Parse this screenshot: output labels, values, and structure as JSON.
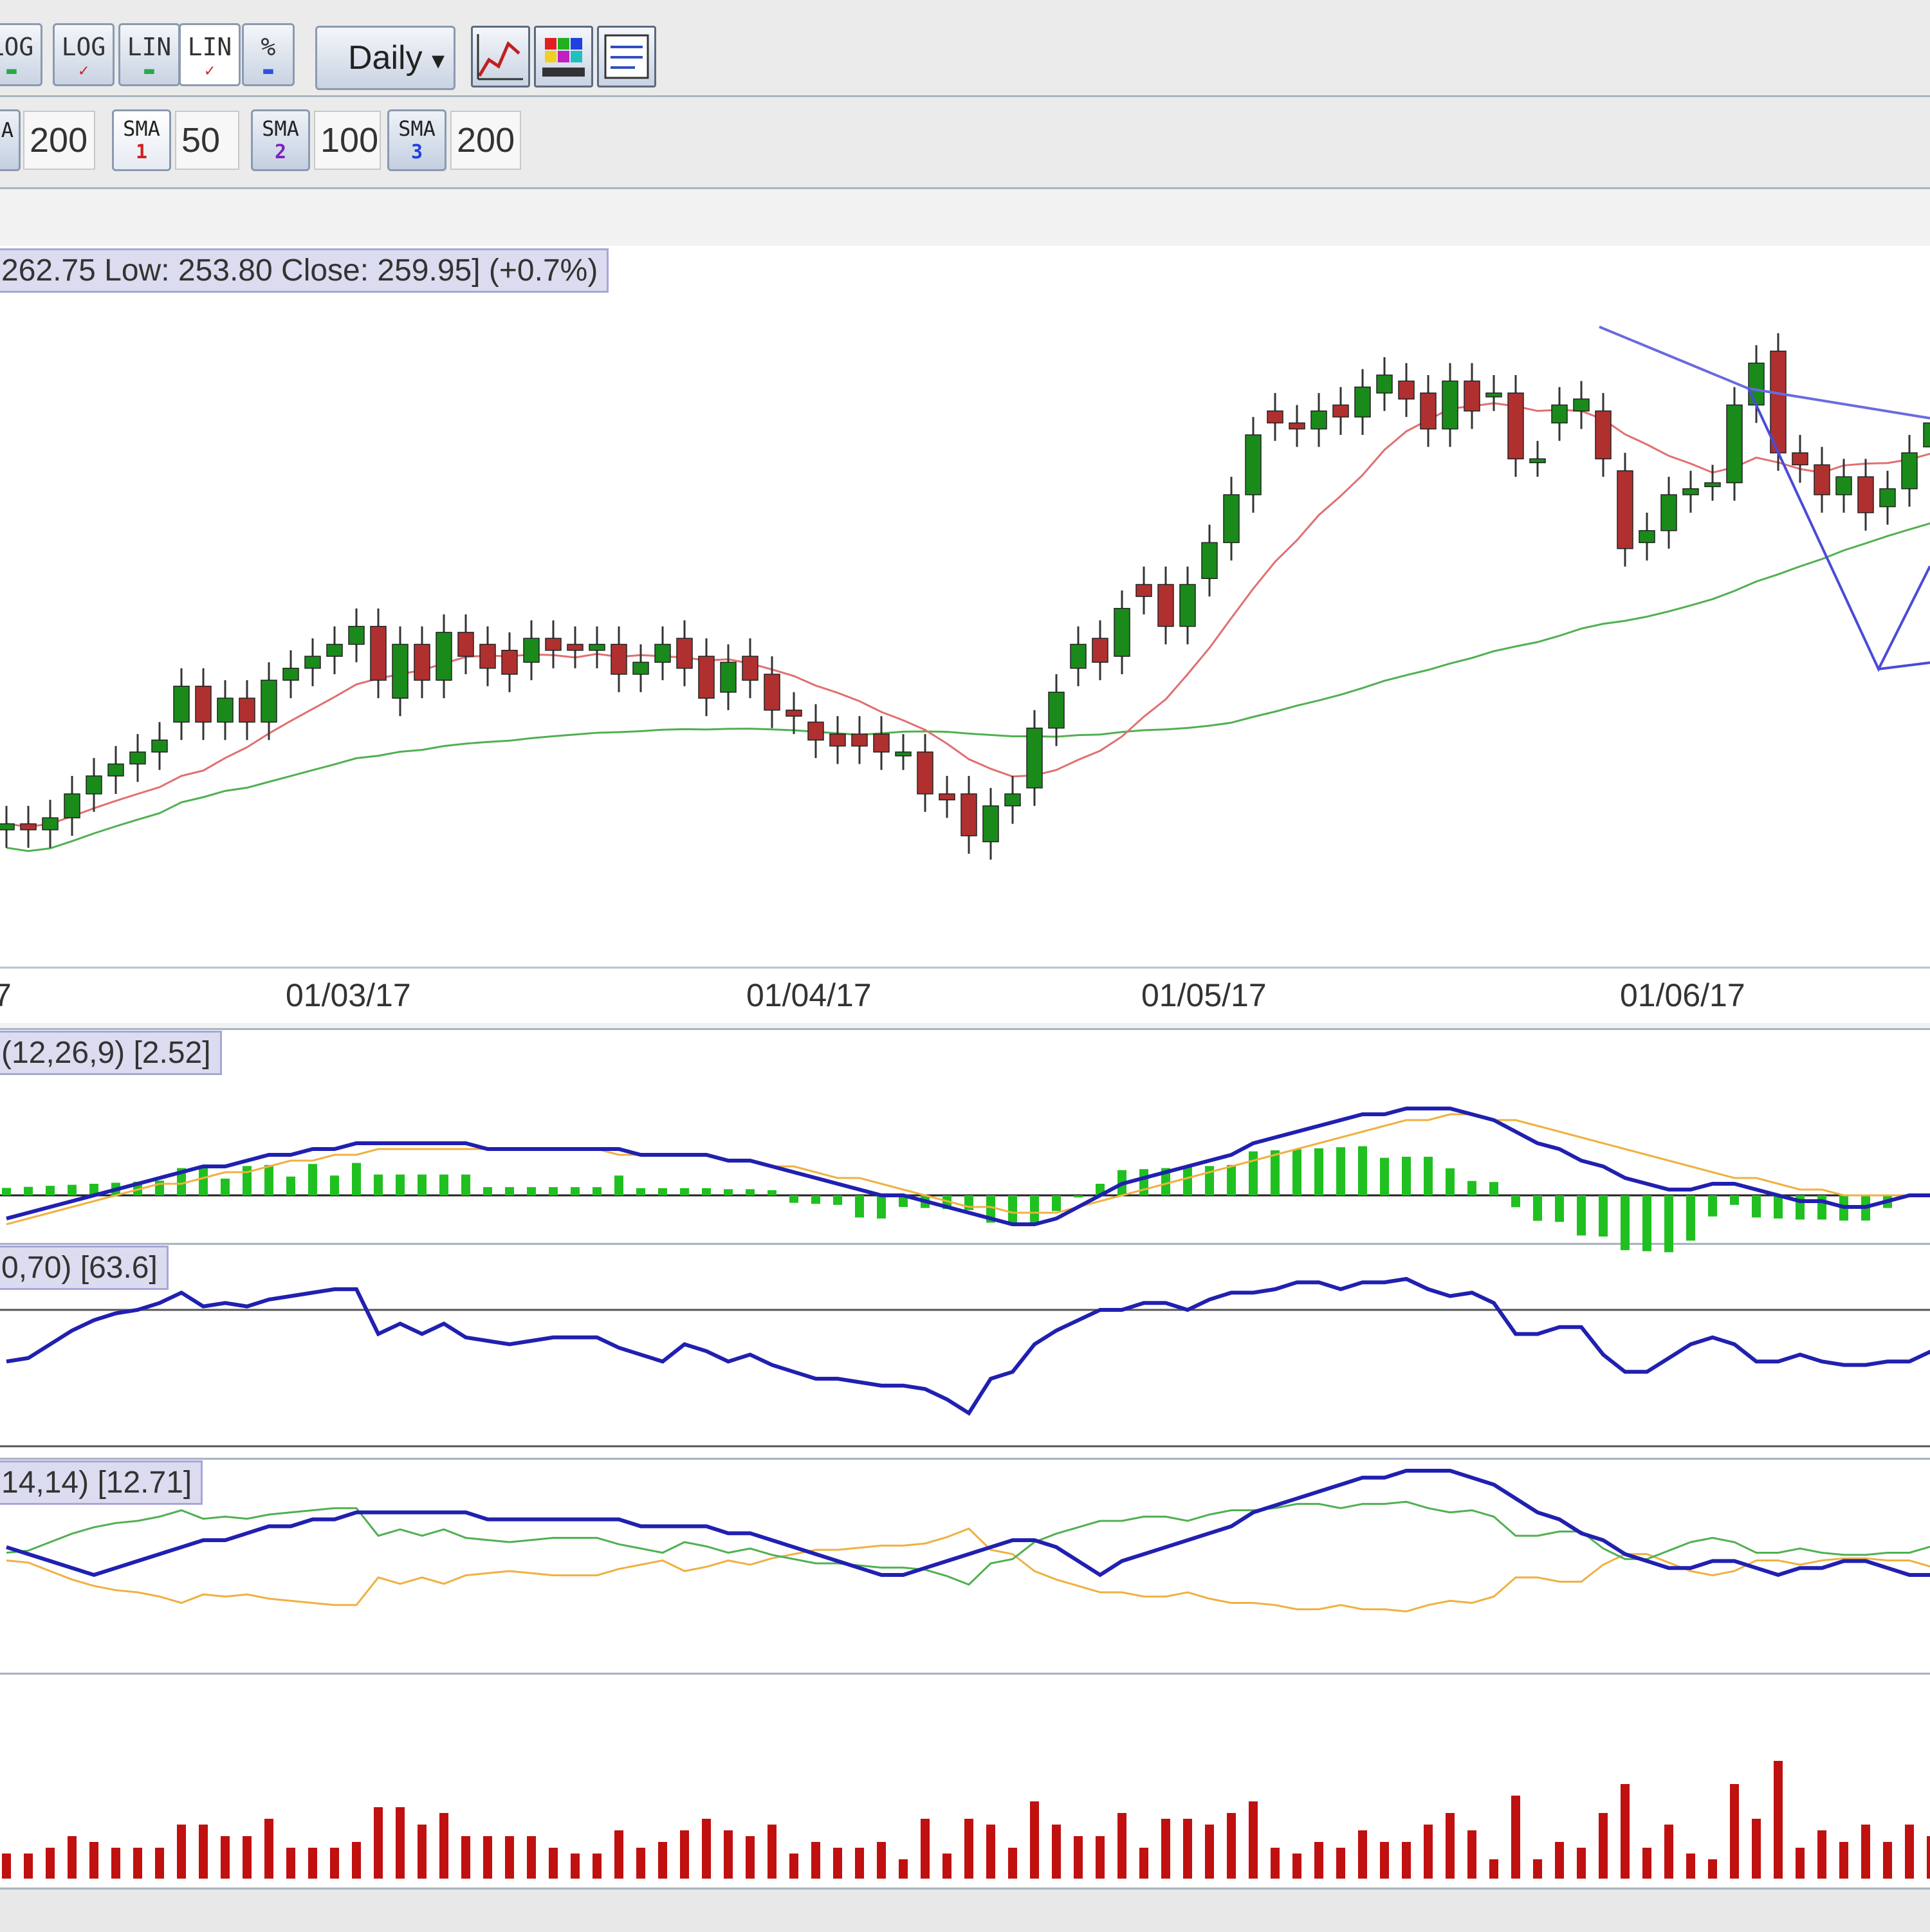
{
  "toolbar": {
    "scale_buttons": [
      {
        "label": "LOG",
        "mark": "▬",
        "color": "#2aa84a"
      },
      {
        "label": "LOG",
        "mark": "✓",
        "color": "#d02020"
      },
      {
        "label": "LIN",
        "mark": "▬",
        "color": "#2aa84a"
      },
      {
        "label": "LIN",
        "mark": "✓",
        "color": "#d02020"
      },
      {
        "label": "%",
        "mark": "▬",
        "color": "#3050e0"
      }
    ],
    "period_label": "Daily",
    "period_arrow": "▾",
    "tool_icons": [
      "chart-type-icon",
      "color-palette-icon",
      "chart-settings-icon"
    ]
  },
  "ma_bar": {
    "partial_value": "200",
    "partial_label": "A",
    "sma": [
      {
        "label": "SMA",
        "num": "1",
        "num_color": "#d02020",
        "value": "50"
      },
      {
        "label": "SMA",
        "num": "2",
        "num_color": "#8020c0",
        "value": "100"
      },
      {
        "label": "SMA",
        "num": "3",
        "num_color": "#2040e0",
        "value": "200"
      }
    ]
  },
  "price_panel": {
    "info": "262.75  Low: 253.80  Close: 259.95] (+0.7%)"
  },
  "dates": [
    "7",
    "01/03/17",
    "01/04/17",
    "01/05/17",
    "01/06/17"
  ],
  "macd_panel": {
    "label": "(12,26,9) [2.52]"
  },
  "rsi_panel": {
    "label": "0,70) [63.6]"
  },
  "adx_panel": {
    "label": "14,14) [12.71]"
  },
  "colors": {
    "up": "#1a8a1a",
    "down": "#b03030",
    "sma_red": "#e07070",
    "sma_green": "#50b050",
    "blue": "#2020b0",
    "orange": "#f0b040",
    "volume": "#c01010"
  },
  "chart_data": {
    "type": "candlestick",
    "candles": [
      {
        "o": 214,
        "c": 215
      },
      {
        "o": 215,
        "c": 214
      },
      {
        "o": 214,
        "c": 216
      },
      {
        "o": 216,
        "c": 220
      },
      {
        "o": 220,
        "c": 223
      },
      {
        "o": 223,
        "c": 225
      },
      {
        "o": 225,
        "c": 227
      },
      {
        "o": 227,
        "c": 229
      },
      {
        "o": 232,
        "c": 238
      },
      {
        "o": 238,
        "c": 232
      },
      {
        "o": 232,
        "c": 236
      },
      {
        "o": 236,
        "c": 232
      },
      {
        "o": 232,
        "c": 239
      },
      {
        "o": 239,
        "c": 241
      },
      {
        "o": 241,
        "c": 243
      },
      {
        "o": 243,
        "c": 245
      },
      {
        "o": 245,
        "c": 248
      },
      {
        "o": 248,
        "c": 239
      },
      {
        "o": 236,
        "c": 245
      },
      {
        "o": 245,
        "c": 239
      },
      {
        "o": 239,
        "c": 247
      },
      {
        "o": 247,
        "c": 243
      },
      {
        "o": 245,
        "c": 241
      },
      {
        "o": 244,
        "c": 240
      },
      {
        "o": 242,
        "c": 246
      },
      {
        "o": 246,
        "c": 244
      },
      {
        "o": 245,
        "c": 244
      },
      {
        "o": 244,
        "c": 245
      },
      {
        "o": 245,
        "c": 240
      },
      {
        "o": 240,
        "c": 242
      },
      {
        "o": 242,
        "c": 245
      },
      {
        "o": 246,
        "c": 241
      },
      {
        "o": 243,
        "c": 236
      },
      {
        "o": 237,
        "c": 242
      },
      {
        "o": 243,
        "c": 239
      },
      {
        "o": 240,
        "c": 234
      },
      {
        "o": 234,
        "c": 233
      },
      {
        "o": 232,
        "c": 229
      },
      {
        "o": 230,
        "c": 228
      },
      {
        "o": 230,
        "c": 228
      },
      {
        "o": 230,
        "c": 227
      },
      {
        "o": 227,
        "c": 227
      },
      {
        "o": 227,
        "c": 220
      },
      {
        "o": 220,
        "c": 219
      },
      {
        "o": 220,
        "c": 213
      },
      {
        "o": 212,
        "c": 218
      },
      {
        "o": 218,
        "c": 220
      },
      {
        "o": 221,
        "c": 231
      },
      {
        "o": 231,
        "c": 237
      },
      {
        "o": 241,
        "c": 245
      },
      {
        "o": 246,
        "c": 242
      },
      {
        "o": 243,
        "c": 251
      },
      {
        "o": 255,
        "c": 253
      },
      {
        "o": 255,
        "c": 248
      },
      {
        "o": 248,
        "c": 255
      },
      {
        "o": 256,
        "c": 262
      },
      {
        "o": 262,
        "c": 270
      },
      {
        "o": 270,
        "c": 280
      },
      {
        "o": 284,
        "c": 282
      },
      {
        "o": 282,
        "c": 281
      },
      {
        "o": 281,
        "c": 284
      },
      {
        "o": 285,
        "c": 283
      },
      {
        "o": 283,
        "c": 288
      },
      {
        "o": 287,
        "c": 290
      },
      {
        "o": 289,
        "c": 286
      },
      {
        "o": 287,
        "c": 281
      },
      {
        "o": 281,
        "c": 289
      },
      {
        "o": 289,
        "c": 284
      },
      {
        "o": 287,
        "c": 287
      },
      {
        "o": 287,
        "c": 276
      },
      {
        "o": 276,
        "c": 276
      },
      {
        "o": 282,
        "c": 285
      },
      {
        "o": 284,
        "c": 286
      },
      {
        "o": 284,
        "c": 276
      },
      {
        "o": 274,
        "c": 261
      },
      {
        "o": 262,
        "c": 264
      },
      {
        "o": 264,
        "c": 270
      },
      {
        "o": 270,
        "c": 271
      },
      {
        "o": 272,
        "c": 272
      },
      {
        "o": 272,
        "c": 285
      },
      {
        "o": 285,
        "c": 292
      },
      {
        "o": 294,
        "c": 277
      },
      {
        "o": 277,
        "c": 275
      },
      {
        "o": 275,
        "c": 270
      },
      {
        "o": 270,
        "c": 273
      },
      {
        "o": 273,
        "c": 267
      },
      {
        "o": 268,
        "c": 271
      },
      {
        "o": 271,
        "c": 277
      },
      {
        "o": 278,
        "c": 282
      }
    ],
    "macd": [
      -4,
      -3,
      -2,
      -1,
      0,
      1,
      2,
      3,
      4,
      5,
      5,
      6,
      7,
      7,
      8,
      8,
      9,
      9,
      9,
      9,
      9,
      9,
      8,
      8,
      8,
      8,
      8,
      8,
      8,
      7,
      7,
      7,
      7,
      6,
      6,
      5,
      4,
      3,
      2,
      1,
      0,
      0,
      -1,
      -2,
      -3,
      -4,
      -5,
      -5,
      -4,
      -2,
      0,
      2,
      3,
      4,
      5,
      6,
      7,
      9,
      10,
      11,
      12,
      13,
      14,
      14,
      15,
      15,
      15,
      14,
      13,
      11,
      9,
      8,
      6,
      5,
      3,
      2,
      1,
      1,
      2,
      2,
      1,
      0,
      -1,
      -1,
      -2,
      -2,
      -1,
      0,
      0
    ],
    "macd_signal": [
      -5,
      -4,
      -3,
      -2,
      -1,
      0,
      1,
      2,
      2,
      3,
      4,
      4,
      5,
      6,
      6,
      7,
      7,
      8,
      8,
      8,
      8,
      8,
      8,
      8,
      8,
      8,
      8,
      8,
      7,
      7,
      7,
      7,
      7,
      6,
      6,
      5,
      5,
      4,
      3,
      3,
      2,
      1,
      0,
      -1,
      -2,
      -2,
      -3,
      -3,
      -3,
      -2,
      -1,
      0,
      1,
      2,
      3,
      4,
      5,
      6,
      7,
      8,
      9,
      10,
      11,
      12,
      13,
      13,
      14,
      14,
      13,
      13,
      12,
      11,
      10,
      9,
      8,
      7,
      6,
      5,
      4,
      3,
      3,
      2,
      1,
      1,
      0,
      0,
      0,
      0,
      0
    ],
    "rsi": [
      55,
      56,
      60,
      64,
      67,
      69,
      70,
      72,
      75,
      71,
      72,
      71,
      73,
      74,
      75,
      76,
      76,
      63,
      66,
      63,
      66,
      62,
      61,
      60,
      61,
      62,
      62,
      62,
      59,
      57,
      55,
      60,
      58,
      55,
      57,
      54,
      52,
      50,
      50,
      49,
      48,
      48,
      47,
      44,
      40,
      50,
      52,
      60,
      64,
      67,
      70,
      70,
      72,
      72,
      70,
      73,
      75,
      75,
      76,
      78,
      78,
      76,
      78,
      78,
      79,
      76,
      74,
      75,
      72,
      63,
      63,
      65,
      65,
      57,
      52,
      52,
      56,
      60,
      62,
      60,
      55,
      55,
      57,
      55,
      54,
      54,
      55,
      55,
      58
    ]
  }
}
